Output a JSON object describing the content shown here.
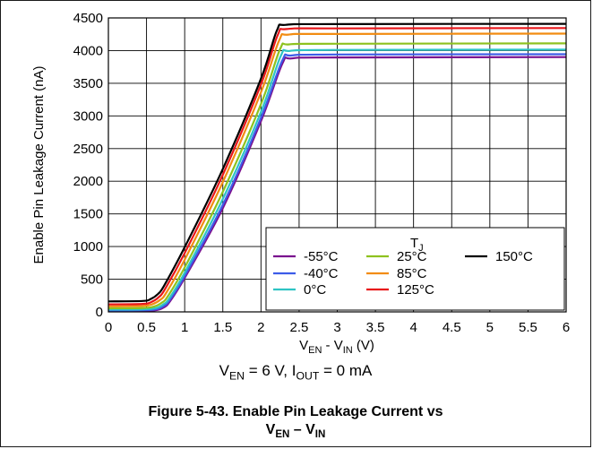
{
  "chart_data": {
    "type": "line",
    "xlabel": {
      "main": "V",
      "sub1": "EN",
      "mid": " - V",
      "sub2": "IN",
      "tail": " (V)"
    },
    "ylabel": "Enable Pin Leakage Current (nA)",
    "xlim": [
      0,
      6
    ],
    "ylim": [
      0,
      4500
    ],
    "xticks": [
      "0",
      "0.5",
      "1",
      "1.5",
      "2",
      "2.5",
      "3",
      "3.5",
      "4",
      "4.5",
      "5",
      "5.5",
      "6"
    ],
    "yticks": [
      "0",
      "500",
      "1000",
      "1500",
      "2000",
      "2500",
      "3000",
      "3500",
      "4000",
      "4500"
    ],
    "grid": true,
    "legend_title": {
      "main": "T",
      "sub": "J"
    },
    "legend_position": "bottom-right",
    "series": [
      {
        "name": "-55°C",
        "color": "#7a0f8e",
        "x": [
          0,
          0.45,
          0.62,
          0.72,
          0.8,
          1.0,
          1.5,
          2.0,
          2.28,
          2.4,
          3.0,
          6.0
        ],
        "y": [
          12,
          15,
          25,
          65,
          150,
          520,
          1590,
          2920,
          3800,
          3880,
          3895,
          3900
        ]
      },
      {
        "name": "-40°C",
        "color": "#3d5ce8",
        "x": [
          0,
          0.45,
          0.62,
          0.72,
          0.8,
          1.0,
          1.5,
          2.0,
          2.28,
          2.4,
          3.0,
          6.0
        ],
        "y": [
          20,
          25,
          38,
          85,
          175,
          550,
          1640,
          2970,
          3850,
          3925,
          3940,
          3945
        ]
      },
      {
        "name": "0°C",
        "color": "#2ec4c4",
        "x": [
          0,
          0.45,
          0.62,
          0.72,
          0.8,
          1.0,
          1.5,
          2.0,
          2.26,
          2.38,
          3.0,
          6.0
        ],
        "y": [
          35,
          40,
          58,
          115,
          210,
          600,
          1730,
          3060,
          3920,
          3995,
          4010,
          4015
        ]
      },
      {
        "name": "25°C",
        "color": "#8ec21f",
        "x": [
          0,
          0.45,
          0.6,
          0.7,
          0.78,
          1.0,
          1.5,
          2.0,
          2.25,
          2.37,
          3.0,
          6.0
        ],
        "y": [
          55,
          60,
          82,
          140,
          240,
          680,
          1840,
          3180,
          4020,
          4095,
          4105,
          4110
        ]
      },
      {
        "name": "85°C",
        "color": "#f28c12",
        "x": [
          0,
          0.45,
          0.58,
          0.68,
          0.76,
          1.0,
          1.5,
          2.0,
          2.24,
          2.36,
          3.0,
          6.0
        ],
        "y": [
          85,
          92,
          120,
          185,
          295,
          800,
          1990,
          3360,
          4160,
          4245,
          4255,
          4260
        ]
      },
      {
        "name": "125°C",
        "color": "#e8161a",
        "x": [
          0,
          0.45,
          0.57,
          0.66,
          0.74,
          1.0,
          1.5,
          2.0,
          2.22,
          2.34,
          3.0,
          6.0
        ],
        "y": [
          115,
          122,
          155,
          225,
          345,
          900,
          2100,
          3480,
          4240,
          4330,
          4340,
          4345
        ]
      },
      {
        "name": "150°C",
        "color": "#000000",
        "x": [
          0,
          0.45,
          0.56,
          0.65,
          0.73,
          1.0,
          1.5,
          2.0,
          2.21,
          2.33,
          3.0,
          6.0
        ],
        "y": [
          160,
          168,
          200,
          275,
          400,
          990,
          2190,
          3570,
          4310,
          4395,
          4405,
          4410
        ]
      }
    ],
    "condition": {
      "v1": "V",
      "v1sub": "EN",
      "v1rest": " = 6 V, I",
      "v2sub": "OUT",
      "v2rest": " = 0 mA"
    },
    "caption": {
      "line1": "Figure 5-43. Enable Pin Leakage Current vs",
      "l2a": "V",
      "l2asub": "EN",
      "l2mid": " – V",
      "l2bsub": "IN"
    }
  }
}
